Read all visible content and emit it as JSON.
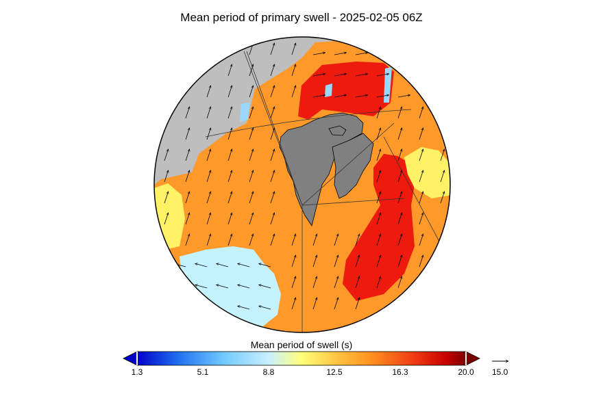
{
  "title": "Mean period of primary swell - 2025-02-05 06Z",
  "colorbar": {
    "label": "Mean period of swell (s)",
    "ticks": [
      "1.3",
      "5.1",
      "8.8",
      "12.5",
      "16.3",
      "20.0"
    ],
    "stops": [
      "#0000c8",
      "#1e6cf0",
      "#6fc8ff",
      "#c8f0ff",
      "#ffff78",
      "#ffbe3c",
      "#ff8c1e",
      "#f03c14",
      "#c80000",
      "#780000"
    ]
  },
  "reference_arrow": {
    "value": "15.0"
  },
  "colors": {
    "land": "#808080",
    "ice": "#bebebe",
    "orange": "#ff9a2a",
    "red": "#ee1a0e",
    "yellow": "#fff266",
    "lightblue": "#c4f2ff"
  }
}
